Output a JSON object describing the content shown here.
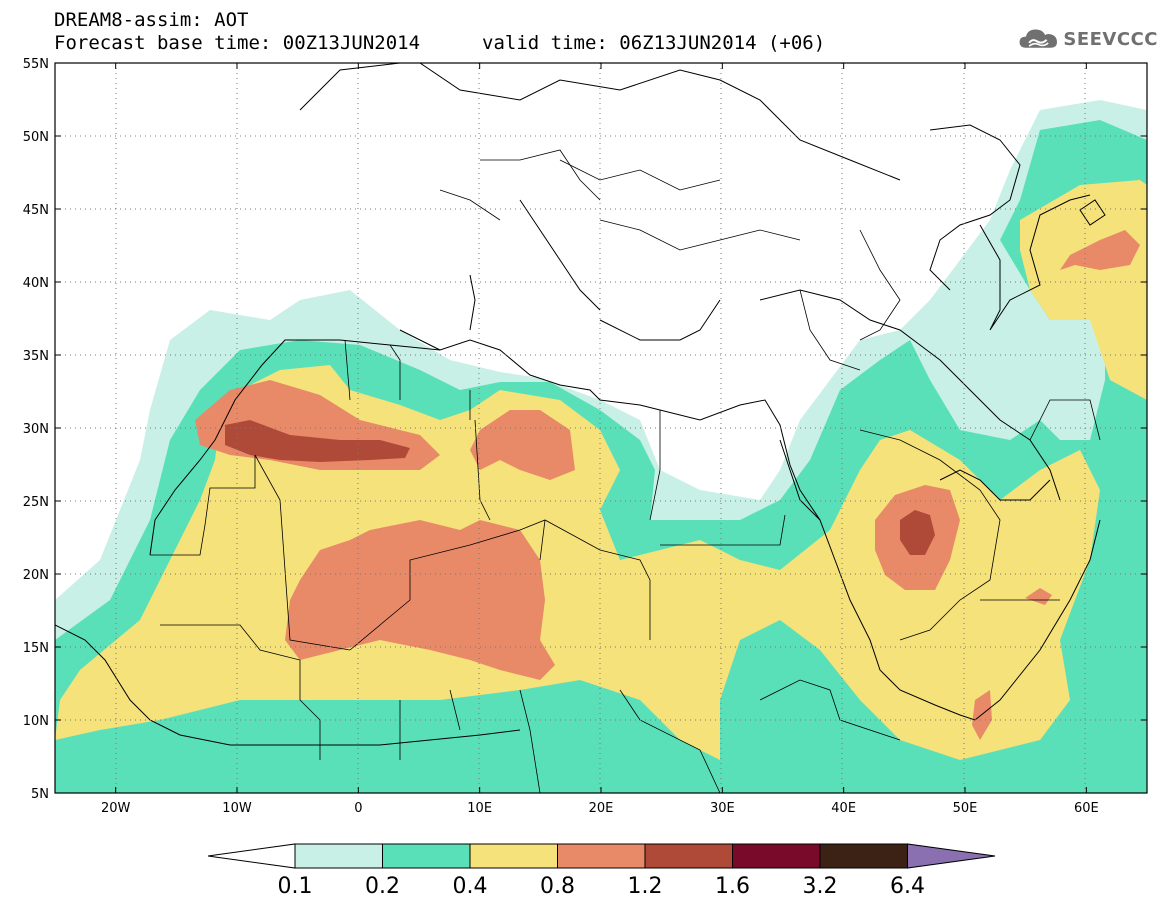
{
  "header": {
    "title": "DREAM8-assim: AOT",
    "forecast_base": "Forecast base time: 00Z13JUN2014",
    "valid_time": "valid time: 06Z13JUN2014 (+06)"
  },
  "logo": {
    "text": "SEEVCCC",
    "icon": "cloud-icon",
    "color": "#707070"
  },
  "map": {
    "lon_range": [
      -25,
      65
    ],
    "lat_range": [
      5,
      55
    ],
    "lon_ticks": [
      "20W",
      "10W",
      "0",
      "10E",
      "20E",
      "30E",
      "40E",
      "50E",
      "60E"
    ],
    "lat_ticks": [
      "5N",
      "10N",
      "15N",
      "20N",
      "25N",
      "30N",
      "35N",
      "40N",
      "45N",
      "50N",
      "55N"
    ],
    "grid": "dotted"
  },
  "colorbar": {
    "labels": [
      "0.1",
      "0.2",
      "0.4",
      "0.8",
      "1.2",
      "1.6",
      "3.2",
      "6.4"
    ],
    "colors": [
      "#ffffff",
      "#c8f0e6",
      "#5ae0b8",
      "#f5e27a",
      "#e88a68",
      "#b04a38",
      "#7a0a2a",
      "#3c2214",
      "#8a70b0"
    ]
  }
}
